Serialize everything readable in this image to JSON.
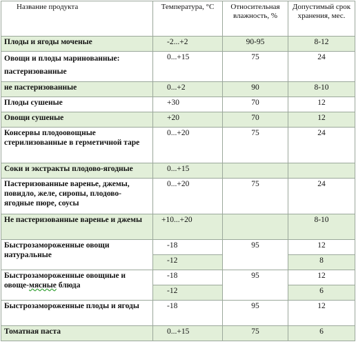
{
  "headers": {
    "name": "Название продукта",
    "temp_prefix": "Температура, ",
    "temp_unit": "°C",
    "humidity": "Относительная влажность, %",
    "shelf": "Допустимый срок хранения, мес."
  },
  "rows": {
    "r1": {
      "name": "Плоды и ягоды моченые",
      "temp": "-2...+2",
      "humidity": "90-95",
      "shelf": "8-12"
    },
    "r2": {
      "name": "Овощи и плоды маринованные:",
      "sub": "пастеризованные",
      "temp": "0...+15",
      "humidity": "75",
      "shelf": "24"
    },
    "r3": {
      "name": "не пастеризованные",
      "temp": "0...+2",
      "humidity": "90",
      "shelf": "8-10"
    },
    "r4": {
      "name": "Плоды сушеные",
      "temp": "+30",
      "humidity": "70",
      "shelf": "12"
    },
    "r5": {
      "name": "Овощи сушеные",
      "temp": "+20",
      "humidity": "70",
      "shelf": "12"
    },
    "r6": {
      "name": "Консервы плодоовощные стерилизованные в герметичной таре",
      "temp": "0...+20",
      "humidity": "75",
      "shelf": "24"
    },
    "r7": {
      "name": "Соки и экстракты плодово-ягодные",
      "temp": "0...+15",
      "humidity": "",
      "shelf": ""
    },
    "r8": {
      "name": "Пастеризованные варенье, джемы, повидло, желе, сиропы, плодово-ягодные пюре, соусы",
      "temp": "0...+20",
      "humidity": "75",
      "shelf": "24"
    },
    "r9": {
      "name": "Не пастеризованные варенье и джемы",
      "temp": "+10...+20",
      "humidity": "",
      "shelf": "8-10"
    },
    "r10": {
      "name": "Быстрозамороженные овощи натуральные",
      "temp_a": "-18",
      "humidity": "95",
      "shelf_a": "12",
      "temp_b": "-12",
      "shelf_b": "8"
    },
    "r11": {
      "name_a": "Быстрозамороженные овощные и овоще-",
      "name_ul": "мясные",
      "name_b": " блюда",
      "temp_a": "-18",
      "humidity": "95",
      "shelf_a": "12",
      "temp_b": "-12",
      "shelf_b": "6"
    },
    "r12": {
      "name": "Быстрозамороженные плоды и ягоды",
      "temp": "-18",
      "humidity": "95",
      "shelf": "12"
    },
    "r13": {
      "name": "Томатная паста",
      "temp": "0...+15",
      "humidity": "75",
      "shelf": "6"
    }
  }
}
